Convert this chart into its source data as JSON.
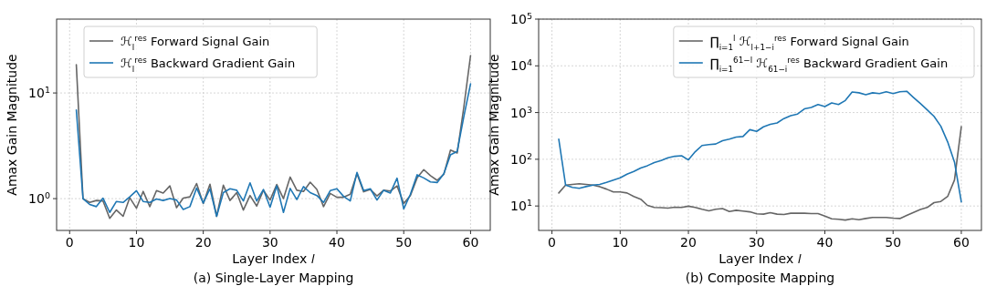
{
  "chart_data": [
    {
      "type": "line",
      "title": "(a) Single-Layer Mapping",
      "xlabel": "Layer Index 𝑙",
      "ylabel": "Amax Gain Magnitude",
      "log": "y",
      "grid": true,
      "legend": "top left",
      "xlim": [
        -1.95,
        62.95
      ],
      "xticks": [
        0,
        10,
        20,
        30,
        40,
        50,
        60
      ],
      "ylim": [
        0.5,
        50
      ],
      "yticks": [
        {
          "value": 1,
          "label": "10$^{0}$"
        },
        {
          "value": 10,
          "label": "10$^{1}$"
        }
      ],
      "x": [
        1,
        2,
        3,
        4,
        5,
        6,
        7,
        8,
        9,
        10,
        11,
        12,
        13,
        14,
        15,
        16,
        17,
        18,
        19,
        20,
        21,
        22,
        23,
        24,
        25,
        26,
        27,
        28,
        29,
        30,
        31,
        32,
        33,
        34,
        35,
        36,
        37,
        38,
        39,
        40,
        41,
        42,
        43,
        44,
        45,
        46,
        47,
        48,
        49,
        50,
        51,
        52,
        53,
        54,
        55,
        56,
        57,
        58,
        59,
        60
      ],
      "series": [
        {
          "name": "ℋ$_{l}$$^{res}$ Forward Signal Gain",
          "color": "#666666",
          "values": [
            18.5,
            1.0,
            0.92,
            0.96,
            0.95,
            0.65,
            0.78,
            0.68,
            1.02,
            0.81,
            1.17,
            0.84,
            1.19,
            1.13,
            1.32,
            0.82,
            1.01,
            1.04,
            1.39,
            0.9,
            1.37,
            0.68,
            1.34,
            0.96,
            1.14,
            0.78,
            1.07,
            0.85,
            1.2,
            0.97,
            1.36,
            1.0,
            1.6,
            1.2,
            1.17,
            1.43,
            1.22,
            0.84,
            1.12,
            1.03,
            1.03,
            1.1,
            1.72,
            1.16,
            1.22,
            1.06,
            1.2,
            1.18,
            1.32,
            0.9,
            1.07,
            1.57,
            1.88,
            1.65,
            1.49,
            1.7,
            2.88,
            2.7,
            7.4,
            22.6
          ]
        },
        {
          "name": "ℋ$_{l}$$^{res}$ Backward Gradient Gain",
          "color": "#1f77b4",
          "values": [
            6.9,
            1.0,
            0.88,
            0.84,
            1.01,
            0.74,
            0.94,
            0.92,
            1.04,
            1.19,
            0.94,
            0.92,
            0.99,
            0.96,
            1.0,
            0.97,
            0.79,
            0.84,
            1.26,
            0.91,
            1.24,
            0.68,
            1.14,
            1.24,
            1.2,
            0.95,
            1.41,
            0.95,
            1.22,
            0.83,
            1.32,
            0.74,
            1.25,
            0.98,
            1.3,
            1.14,
            1.07,
            0.92,
            1.19,
            1.24,
            1.05,
            0.95,
            1.77,
            1.19,
            1.24,
            0.97,
            1.2,
            1.13,
            1.56,
            0.8,
            1.1,
            1.68,
            1.57,
            1.44,
            1.42,
            1.72,
            2.6,
            2.8,
            6.0,
            12.2
          ]
        }
      ]
    },
    {
      "type": "line",
      "title": "(b) Composite Mapping",
      "xlabel": "Layer Index 𝑙",
      "ylabel": "Amax Gain Magnitude",
      "log": "y",
      "grid": true,
      "legend": "top right",
      "xlim": [
        -1.95,
        62.95
      ],
      "xticks": [
        0,
        10,
        20,
        30,
        40,
        50,
        60
      ],
      "ylim": [
        3,
        100000
      ],
      "yticks": [
        {
          "value": 10,
          "label": "10$^{1}$"
        },
        {
          "value": 100,
          "label": "10$^{2}$"
        },
        {
          "value": 1000,
          "label": "10$^{3}$"
        },
        {
          "value": 10000,
          "label": "10$^{4}$"
        },
        {
          "value": 100000,
          "label": "10$^{5}$"
        }
      ],
      "x": [
        1,
        2,
        3,
        4,
        5,
        6,
        7,
        8,
        9,
        10,
        11,
        12,
        13,
        14,
        15,
        16,
        17,
        18,
        19,
        20,
        21,
        22,
        23,
        24,
        25,
        26,
        27,
        28,
        29,
        30,
        31,
        32,
        33,
        34,
        35,
        36,
        37,
        38,
        39,
        40,
        41,
        42,
        43,
        44,
        45,
        46,
        47,
        48,
        49,
        50,
        51,
        52,
        53,
        54,
        55,
        56,
        57,
        58,
        59,
        60
      ],
      "series": [
        {
          "name": "∏$_{i=1}$$^{l}$ ℋ$_{l+1−i}$$^{res}$ Forward Signal Gain",
          "color": "#666666",
          "values": [
            19,
            28,
            29,
            30,
            29,
            28,
            26,
            23,
            20,
            20,
            19,
            16,
            14,
            10.3,
            9.3,
            9.2,
            9.0,
            9.4,
            9.3,
            9.9,
            9.3,
            8.5,
            7.9,
            8.5,
            8.8,
            7.6,
            8.1,
            7.8,
            7.5,
            6.8,
            6.7,
            7.2,
            6.7,
            6.6,
            7.0,
            7.0,
            7.0,
            6.9,
            6.9,
            6.1,
            5.3,
            5.2,
            5.0,
            5.3,
            5.1,
            5.4,
            5.7,
            5.7,
            5.7,
            5.5,
            5.4,
            6.3,
            7.3,
            8.4,
            9.3,
            11.8,
            12.5,
            16,
            36,
            500
          ]
        },
        {
          "name": "∏$_{i=1}$$^{61−l}$ ℋ$_{61−i}$$^{res}$ Backward Gradient Gain",
          "color": "#1f77b4",
          "values": [
            270,
            28,
            25,
            24,
            26,
            28,
            29,
            32,
            36,
            40,
            48,
            55,
            65,
            73,
            85,
            94,
            108,
            116,
            119,
            97,
            145,
            197,
            206,
            212,
            250,
            270,
            298,
            307,
            430,
            395,
            495,
            560,
            600,
            745,
            860,
            930,
            1200,
            1290,
            1490,
            1340,
            1610,
            1490,
            1810,
            2750,
            2650,
            2420,
            2650,
            2540,
            2780,
            2540,
            2780,
            2860,
            2100,
            1560,
            1140,
            830,
            510,
            235,
            87,
            12.3
          ]
        }
      ]
    }
  ]
}
